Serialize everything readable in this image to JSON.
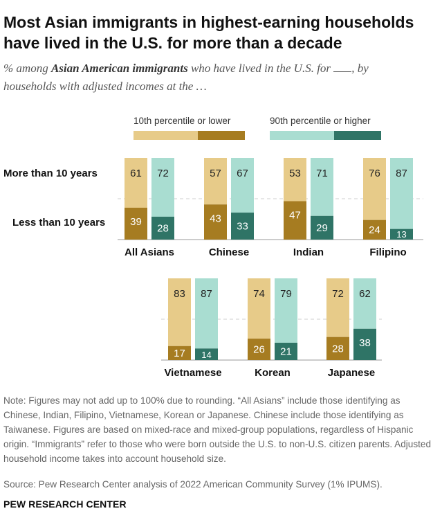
{
  "title": "Most Asian immigrants in highest-earning households have lived in the U.S. for more than a decade",
  "subtitle": {
    "prefix": "% among ",
    "emphasis": "Asian American immigrants",
    "middle": " who have lived in the U.S. for ",
    "suffix": ", by households with adjusted incomes at the …"
  },
  "chart_data": {
    "type": "bar",
    "layout": "paired 100% stacked bars",
    "row_labels": [
      "More than 10 years",
      "Less than 10 years"
    ],
    "legend": [
      {
        "name": "10th percentile or lower",
        "colors": [
          "#e7cb89",
          "#a67c21"
        ]
      },
      {
        "name": "90th percentile or higher",
        "colors": [
          "#a9ddd1",
          "#2f7466"
        ]
      }
    ],
    "colors": {
      "low_more": "#e7cb89",
      "low_less": "#a67c21",
      "high_more": "#a9ddd1",
      "high_less": "#2f7466"
    },
    "groups": [
      {
        "name": "All Asians",
        "low": {
          "more": 61,
          "less": 39
        },
        "high": {
          "more": 72,
          "less": 28
        }
      },
      {
        "name": "Chinese",
        "low": {
          "more": 57,
          "less": 43
        },
        "high": {
          "more": 67,
          "less": 33
        }
      },
      {
        "name": "Indian",
        "low": {
          "more": 53,
          "less": 47
        },
        "high": {
          "more": 71,
          "less": 29
        }
      },
      {
        "name": "Filipino",
        "low": {
          "more": 76,
          "less": 24
        },
        "high": {
          "more": 87,
          "less": 13
        }
      },
      {
        "name": "Vietnamese",
        "low": {
          "more": 83,
          "less": 17
        },
        "high": {
          "more": 87,
          "less": 14
        }
      },
      {
        "name": "Korean",
        "low": {
          "more": 74,
          "less": 26
        },
        "high": {
          "more": 79,
          "less": 21
        }
      },
      {
        "name": "Japanese",
        "low": {
          "more": 72,
          "less": 28
        },
        "high": {
          "more": 62,
          "less": 38
        }
      }
    ]
  },
  "notes": "Note: Figures may not add up to 100% due to rounding. “All Asians” include those identifying as Chinese, Indian, Filipino, Vietnamese, Korean or Japanese. Chinese include those identifying as Taiwanese. Figures are based on mixed-race and mixed-group populations, regardless of Hispanic origin. “Immigrants” refer to those who were born outside the U.S. to non-U.S. citizen parents. Adjusted household income takes into account household size.",
  "source": "Source: Pew Research Center analysis of 2022 American Community Survey (1% IPUMS).",
  "brand": "PEW RESEARCH CENTER"
}
